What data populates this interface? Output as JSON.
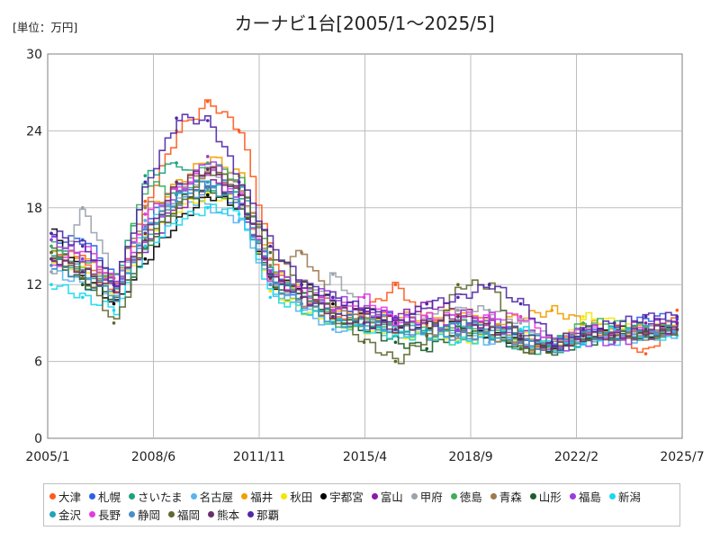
{
  "chart_data": {
    "type": "line",
    "title": "カーナビ1台[2005/1～2025/5]",
    "unit_label": "[単位：万円]",
    "xlabel": "",
    "ylabel": "",
    "ylim": [
      0,
      30
    ],
    "y_ticks": [
      "0",
      "6",
      "12",
      "18",
      "24",
      "30"
    ],
    "x_ticks": [
      "2005/1",
      "2008/6",
      "2011/11",
      "2015/4",
      "2018/9",
      "2022/2",
      "2025/7"
    ],
    "grid": true,
    "legend_position": "bottom",
    "series": [
      {
        "name": "大津",
        "color": "#ff5a1e",
        "values": [
          14.0,
          14.0,
          11.5,
          18.5,
          24.0,
          26.3,
          24.0,
          14.0,
          10.5,
          9.5,
          10.0,
          12.0,
          8.8,
          9.2,
          9.0,
          7.0,
          7.3,
          8.2,
          8.0,
          6.6,
          10.0
        ]
      },
      {
        "name": "札幌",
        "color": "#2c5fe8",
        "values": [
          15.5,
          15.5,
          12.5,
          17.0,
          19.5,
          20.0,
          18.0,
          12.5,
          11.0,
          10.0,
          9.5,
          9.5,
          9.0,
          8.5,
          9.5,
          8.0,
          7.5,
          8.5,
          8.0,
          9.5,
          9.3
        ]
      },
      {
        "name": "さいたま",
        "color": "#1aa37a",
        "values": [
          15.0,
          13.0,
          12.0,
          20.5,
          21.5,
          19.0,
          19.0,
          12.0,
          10.0,
          9.0,
          9.0,
          8.5,
          8.0,
          9.0,
          8.0,
          7.0,
          6.8,
          8.0,
          8.5,
          8.5,
          8.8
        ]
      },
      {
        "name": "名古屋",
        "color": "#5ab4ee",
        "values": [
          13.0,
          12.0,
          11.0,
          17.0,
          19.0,
          18.0,
          17.0,
          11.5,
          10.0,
          8.5,
          8.8,
          8.0,
          8.5,
          8.0,
          7.5,
          7.5,
          7.0,
          8.0,
          7.5,
          8.0,
          8.0
        ]
      },
      {
        "name": "福井",
        "color": "#f0a000",
        "values": [
          14.5,
          14.0,
          12.0,
          17.5,
          20.0,
          22.0,
          20.5,
          13.0,
          11.5,
          10.0,
          9.5,
          9.5,
          9.5,
          10.0,
          9.0,
          9.5,
          10.0,
          9.0,
          8.5,
          8.5,
          9.0
        ]
      },
      {
        "name": "秋田",
        "color": "#f5e500",
        "values": [
          14.0,
          13.0,
          11.0,
          16.0,
          18.0,
          19.0,
          18.5,
          11.5,
          10.0,
          9.0,
          8.5,
          8.0,
          8.0,
          7.5,
          8.0,
          8.0,
          7.0,
          9.5,
          9.0,
          8.0,
          8.5
        ]
      },
      {
        "name": "宇都宮",
        "color": "#000000",
        "values": [
          16.0,
          12.5,
          10.5,
          14.0,
          17.0,
          19.0,
          18.0,
          12.0,
          12.0,
          10.5,
          10.0,
          9.0,
          8.5,
          9.0,
          8.0,
          7.5,
          7.0,
          8.0,
          8.5,
          8.0,
          9.0
        ]
      },
      {
        "name": "富山",
        "color": "#8a1aa8",
        "values": [
          14.0,
          13.0,
          12.0,
          15.0,
          18.0,
          20.0,
          19.0,
          12.5,
          11.0,
          10.0,
          9.8,
          9.5,
          10.5,
          10.0,
          9.0,
          8.5,
          7.0,
          8.5,
          8.5,
          9.0,
          9.0
        ]
      },
      {
        "name": "甲府",
        "color": "#9aa3ad",
        "values": [
          13.0,
          18.0,
          12.0,
          16.5,
          19.0,
          21.0,
          20.0,
          12.0,
          10.5,
          12.8,
          9.5,
          9.0,
          9.5,
          10.0,
          10.0,
          9.0,
          7.5,
          8.0,
          8.0,
          8.5,
          8.5
        ]
      },
      {
        "name": "徳島",
        "color": "#3cae5c",
        "values": [
          15.0,
          14.0,
          12.5,
          20.0,
          19.0,
          21.5,
          20.0,
          13.5,
          11.0,
          9.0,
          9.0,
          8.5,
          9.0,
          8.0,
          8.5,
          7.0,
          7.5,
          9.0,
          9.0,
          8.5,
          8.5
        ]
      },
      {
        "name": "青森",
        "color": "#a07850",
        "values": [
          14.5,
          13.0,
          12.5,
          18.0,
          19.5,
          21.0,
          19.5,
          13.5,
          14.5,
          10.0,
          9.5,
          9.0,
          8.5,
          8.0,
          8.0,
          7.5,
          7.5,
          8.0,
          8.0,
          8.0,
          8.5
        ]
      },
      {
        "name": "山形",
        "color": "#1d5e2a",
        "values": [
          14.0,
          12.0,
          11.0,
          15.0,
          18.5,
          19.5,
          18.0,
          12.0,
          11.5,
          9.5,
          8.5,
          7.5,
          7.0,
          8.5,
          8.0,
          7.0,
          6.8,
          7.5,
          8.0,
          8.0,
          8.5
        ]
      },
      {
        "name": "福島",
        "color": "#9a3ce0",
        "values": [
          15.5,
          14.0,
          12.0,
          16.0,
          19.0,
          22.0,
          18.0,
          13.0,
          12.0,
          11.0,
          10.0,
          9.5,
          9.0,
          8.5,
          9.0,
          7.5,
          7.0,
          7.5,
          7.5,
          8.0,
          8.5
        ]
      },
      {
        "name": "新潟",
        "color": "#1ad8f0",
        "values": [
          12.0,
          11.0,
          10.0,
          15.0,
          17.0,
          18.0,
          17.5,
          11.0,
          10.0,
          9.0,
          8.5,
          8.0,
          8.0,
          7.5,
          8.0,
          8.5,
          7.0,
          7.5,
          8.5,
          8.0,
          8.0
        ]
      },
      {
        "name": "金沢",
        "color": "#22a3b8",
        "values": [
          14.0,
          13.0,
          11.5,
          16.0,
          19.0,
          20.0,
          19.5,
          12.5,
          11.0,
          9.5,
          9.0,
          8.5,
          8.5,
          9.0,
          8.5,
          8.0,
          7.5,
          8.0,
          8.0,
          8.5,
          8.5
        ]
      },
      {
        "name": "長野",
        "color": "#e23ce0",
        "values": [
          13.5,
          15.0,
          12.0,
          17.5,
          19.5,
          21.0,
          19.0,
          12.0,
          11.5,
          10.0,
          11.0,
          9.0,
          9.5,
          9.5,
          9.5,
          9.5,
          7.5,
          8.5,
          8.0,
          8.5,
          8.5
        ]
      },
      {
        "name": "静岡",
        "color": "#4a8ec8",
        "values": [
          13.5,
          12.5,
          11.0,
          16.5,
          18.5,
          19.5,
          18.5,
          12.0,
          10.5,
          9.0,
          8.8,
          8.5,
          8.0,
          8.0,
          8.0,
          7.5,
          7.0,
          8.0,
          8.0,
          8.0,
          8.5
        ]
      },
      {
        "name": "福岡",
        "color": "#5e6830",
        "values": [
          14.5,
          12.5,
          9.0,
          15.5,
          18.0,
          21.0,
          19.5,
          14.5,
          12.0,
          9.5,
          7.5,
          6.0,
          8.0,
          12.0,
          12.0,
          7.0,
          7.0,
          8.0,
          8.0,
          8.0,
          8.5
        ]
      },
      {
        "name": "熊本",
        "color": "#6a2e6a",
        "values": [
          14.0,
          13.0,
          11.5,
          16.0,
          20.0,
          21.0,
          19.0,
          12.5,
          11.0,
          9.5,
          9.0,
          8.5,
          9.0,
          9.5,
          8.5,
          8.0,
          7.0,
          8.0,
          8.0,
          8.5,
          8.5
        ]
      },
      {
        "name": "那覇",
        "color": "#5028a8",
        "values": [
          16.0,
          15.0,
          12.0,
          20.0,
          25.0,
          24.8,
          20.0,
          15.0,
          12.0,
          11.0,
          10.0,
          9.0,
          10.5,
          11.0,
          12.0,
          10.5,
          7.5,
          8.5,
          9.0,
          9.5,
          9.5
        ]
      }
    ]
  }
}
